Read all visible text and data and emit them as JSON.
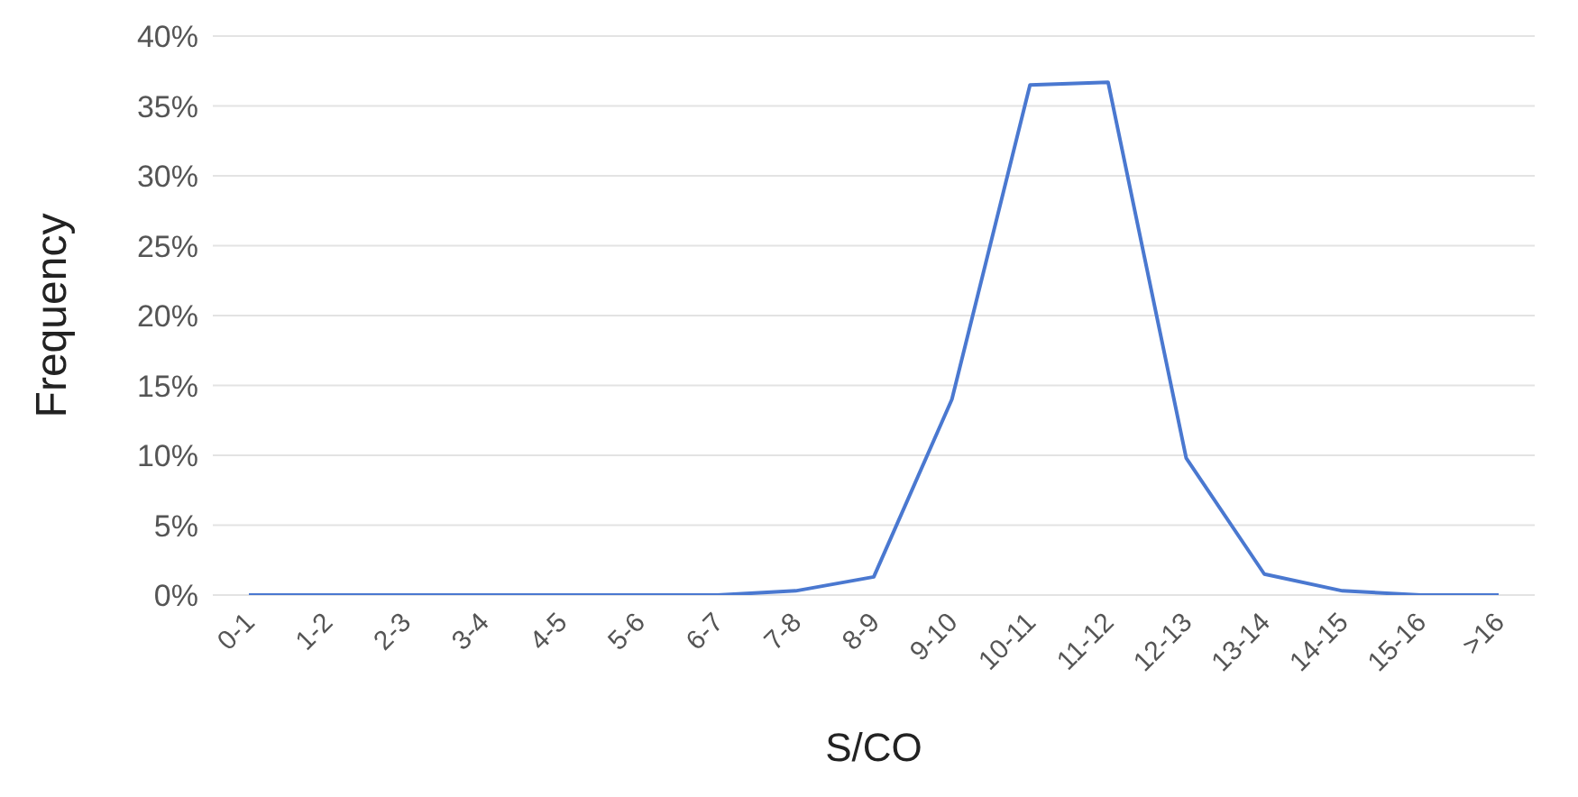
{
  "chart_data": {
    "type": "line",
    "xlabel": "S/CO",
    "ylabel": "Frequency",
    "categories": [
      "0-1",
      "1-2",
      "2-3",
      "3-4",
      "4-5",
      "5-6",
      "6-7",
      "7-8",
      "8-9",
      "9-10",
      "10-11",
      "11-12",
      "12-13",
      "13-14",
      "14-15",
      "15-16",
      ">16"
    ],
    "series": [
      {
        "color": "#4a78d0",
        "values": [
          0,
          0,
          0,
          0,
          0,
          0,
          0,
          0.3,
          1.3,
          14,
          36.5,
          36.7,
          9.8,
          1.5,
          0.3,
          0,
          0
        ]
      }
    ],
    "ylim": [
      0,
      40
    ],
    "yticks": [
      {
        "value": 0,
        "label": "0%"
      },
      {
        "value": 5,
        "label": "5%"
      },
      {
        "value": 10,
        "label": "10%"
      },
      {
        "value": 15,
        "label": "15%"
      },
      {
        "value": 20,
        "label": "20%"
      },
      {
        "value": 25,
        "label": "25%"
      },
      {
        "value": 30,
        "label": "30%"
      },
      {
        "value": 35,
        "label": "35%"
      },
      {
        "value": 40,
        "label": "40%"
      }
    ],
    "grid": "y",
    "marker": "none",
    "line_style": "solid"
  }
}
